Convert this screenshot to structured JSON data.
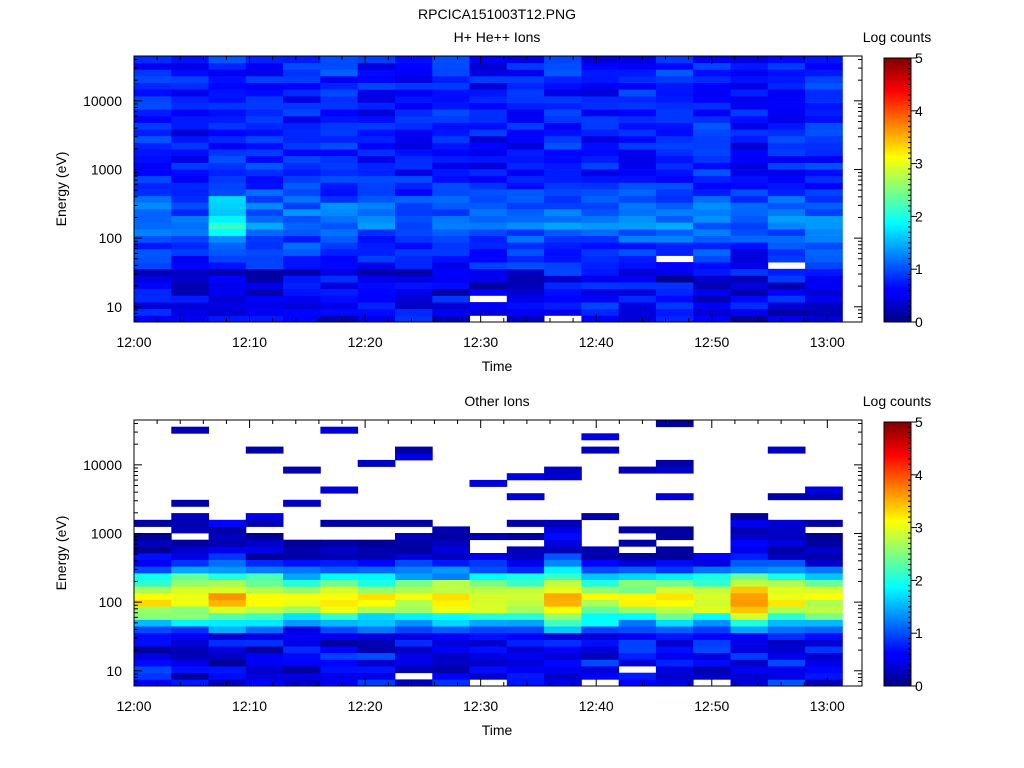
{
  "figure_title": "RPCICA151003T12.PNG",
  "chart_data": [
    {
      "type": "heatmap",
      "title": "H+ He++ Ions",
      "xlabel": "Time",
      "ylabel": "Energy (eV)",
      "colorbar_label": "Log counts",
      "colorbar_ticks": [
        "0",
        "1",
        "2",
        "3",
        "4",
        "5"
      ],
      "x_ticks": [
        "12:00",
        "12:10",
        "12:20",
        "12:30",
        "12:40",
        "12:50",
        "13:00"
      ],
      "y_ticks": [
        "10",
        "100",
        "1000",
        "10000"
      ],
      "y_scale": "log",
      "ylim": [
        6,
        45000
      ],
      "xlim": [
        "12:00",
        "13:03"
      ],
      "clim": [
        0,
        5
      ],
      "time_bins": 19,
      "time_span_min": [
        0,
        61.3
      ],
      "energy_bins": 40,
      "profile": "hplus",
      "blank_cells": [
        [
          9,
          0
        ],
        [
          11,
          0
        ],
        [
          14,
          9
        ],
        [
          17,
          8
        ],
        [
          9,
          3
        ]
      ]
    },
    {
      "type": "heatmap",
      "title": "Other Ions",
      "xlabel": "Time",
      "ylabel": "Energy (eV)",
      "colorbar_label": "Log counts",
      "colorbar_ticks": [
        "0",
        "1",
        "2",
        "3",
        "4",
        "5"
      ],
      "x_ticks": [
        "12:00",
        "12:10",
        "12:20",
        "12:30",
        "12:40",
        "12:50",
        "13:00"
      ],
      "y_ticks": [
        "10",
        "100",
        "1000",
        "10000"
      ],
      "y_scale": "log",
      "ylim": [
        6,
        45000
      ],
      "xlim": [
        "12:00",
        "13:03"
      ],
      "clim": [
        0,
        5
      ],
      "time_bins": 19,
      "time_span_min": [
        0,
        61.3
      ],
      "energy_bins": 40,
      "profile": "other",
      "blank_cells": [
        [
          7,
          1
        ],
        [
          9,
          0
        ],
        [
          12,
          0
        ],
        [
          13,
          2
        ],
        [
          15,
          0
        ]
      ]
    }
  ]
}
